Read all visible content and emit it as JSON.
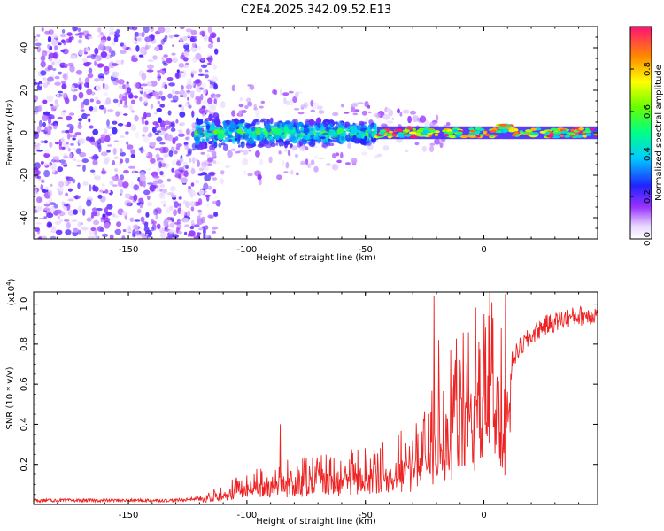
{
  "figure_title": "C2E4.2025.342.09.52.E13",
  "colors": {
    "snr_line": "#ee2222",
    "frame": "#000000"
  },
  "chart_data": [
    {
      "type": "heatmap",
      "title": "C2E4.2025.342.09.52.E13",
      "xlabel": "Height of straight line (km)",
      "ylabel": "Frequency (Hz)",
      "xlim": [
        -190,
        48
      ],
      "ylim": [
        -50,
        50
      ],
      "x_ticks": [
        -150,
        -100,
        -50,
        0
      ],
      "x_tick_labels": [
        "-150",
        "-100",
        "-50",
        "0"
      ],
      "y_ticks": [
        -40,
        -20,
        0,
        20,
        40
      ],
      "y_tick_labels": [
        "-40",
        "-20",
        "0",
        "20",
        "40"
      ],
      "colorbar": {
        "label": "Normalized spectral amplitude",
        "range": [
          0.0,
          1.0
        ],
        "ticks": [
          0.0,
          0.2,
          0.4,
          0.6,
          0.8
        ],
        "tick_labels": [
          "0.0",
          "0.2",
          "0.4",
          "0.6",
          "0.8"
        ]
      },
      "regions": [
        {
          "name": "noise",
          "x_range": [
            -190,
            -120
          ],
          "frequency_spread": [
            -50,
            50
          ],
          "amplitude": 0.15
        },
        {
          "name": "broadband-signal",
          "x_range": [
            -122,
            -45
          ],
          "frequency_center": 0,
          "frequency_spread": [
            -8,
            8
          ],
          "amplitude": 0.35
        },
        {
          "name": "narrow-signal",
          "x_range": [
            -45,
            48
          ],
          "frequency_center": 0,
          "frequency_spread": [
            -3,
            3
          ],
          "amplitude": 0.75
        }
      ]
    },
    {
      "type": "line",
      "xlabel": "Height of straight line (km)",
      "ylabel": "SNR (10 * v/v)",
      "y_scale_label": "(x10",
      "y_scale_exponent": "4",
      "y_scale_suffix": ")",
      "xlim": [
        -190,
        48
      ],
      "ylim": [
        0,
        1.06
      ],
      "x_ticks": [
        -150,
        -100,
        -50,
        0
      ],
      "x_tick_labels": [
        "-150",
        "-100",
        "-50",
        "0"
      ],
      "y_ticks": [
        0.2,
        0.4,
        0.6,
        0.8,
        1.0
      ],
      "y_tick_labels": [
        "0.2",
        "0.4",
        "0.6",
        "0.8",
        "1.0"
      ],
      "series": [
        {
          "name": "SNR",
          "x": [
            -190,
            -180,
            -170,
            -160,
            -150,
            -140,
            -130,
            -120,
            -110,
            -100,
            -90,
            -80,
            -70,
            -60,
            -50,
            -40,
            -30,
            -25,
            -20,
            -15,
            -10,
            -5,
            0,
            5,
            8,
            10,
            12,
            15,
            20,
            25,
            30,
            35,
            40,
            48
          ],
          "y": [
            0.02,
            0.02,
            0.02,
            0.02,
            0.02,
            0.02,
            0.02,
            0.03,
            0.06,
            0.1,
            0.12,
            0.14,
            0.15,
            0.16,
            0.17,
            0.2,
            0.24,
            0.3,
            0.38,
            0.45,
            0.55,
            0.62,
            0.66,
            0.7,
            0.55,
            0.4,
            0.72,
            0.78,
            0.84,
            0.89,
            0.91,
            0.93,
            0.94,
            0.95
          ]
        }
      ],
      "spikes": [
        {
          "x": -86,
          "y": 0.4
        },
        {
          "x": -21,
          "y": 1.04
        },
        {
          "x": -19,
          "y": 0.82
        },
        {
          "x": -12,
          "y": 0.72
        },
        {
          "x": 9,
          "y": 1.05
        },
        {
          "x": 11,
          "y": 0.36
        }
      ]
    }
  ]
}
